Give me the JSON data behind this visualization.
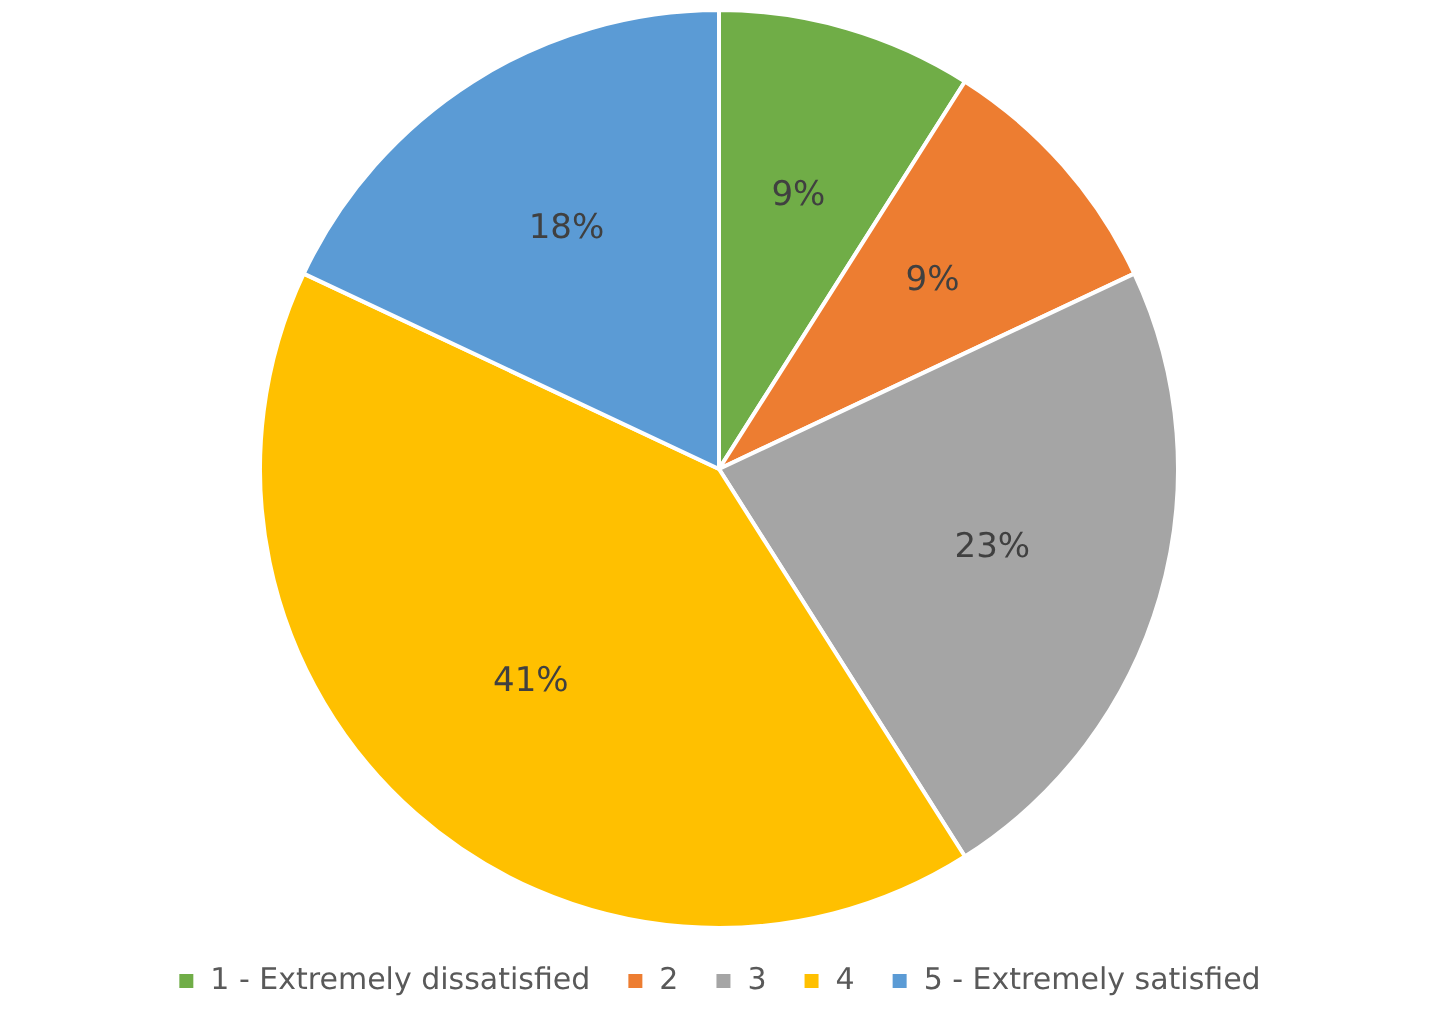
{
  "chart_data": {
    "type": "pie",
    "categories": [
      "1 - Extremely dissatisfied",
      "2",
      "3",
      "4",
      "5 - Extremely satisfied"
    ],
    "values": [
      9,
      9,
      23,
      41,
      18
    ],
    "colors": [
      "#70ad47",
      "#ed7d31",
      "#a5a5a5",
      "#ffc000",
      "#5b9bd5"
    ],
    "value_labels": [
      "9%",
      "9%",
      "23%",
      "41%",
      "18%"
    ],
    "legend": "bottom"
  }
}
